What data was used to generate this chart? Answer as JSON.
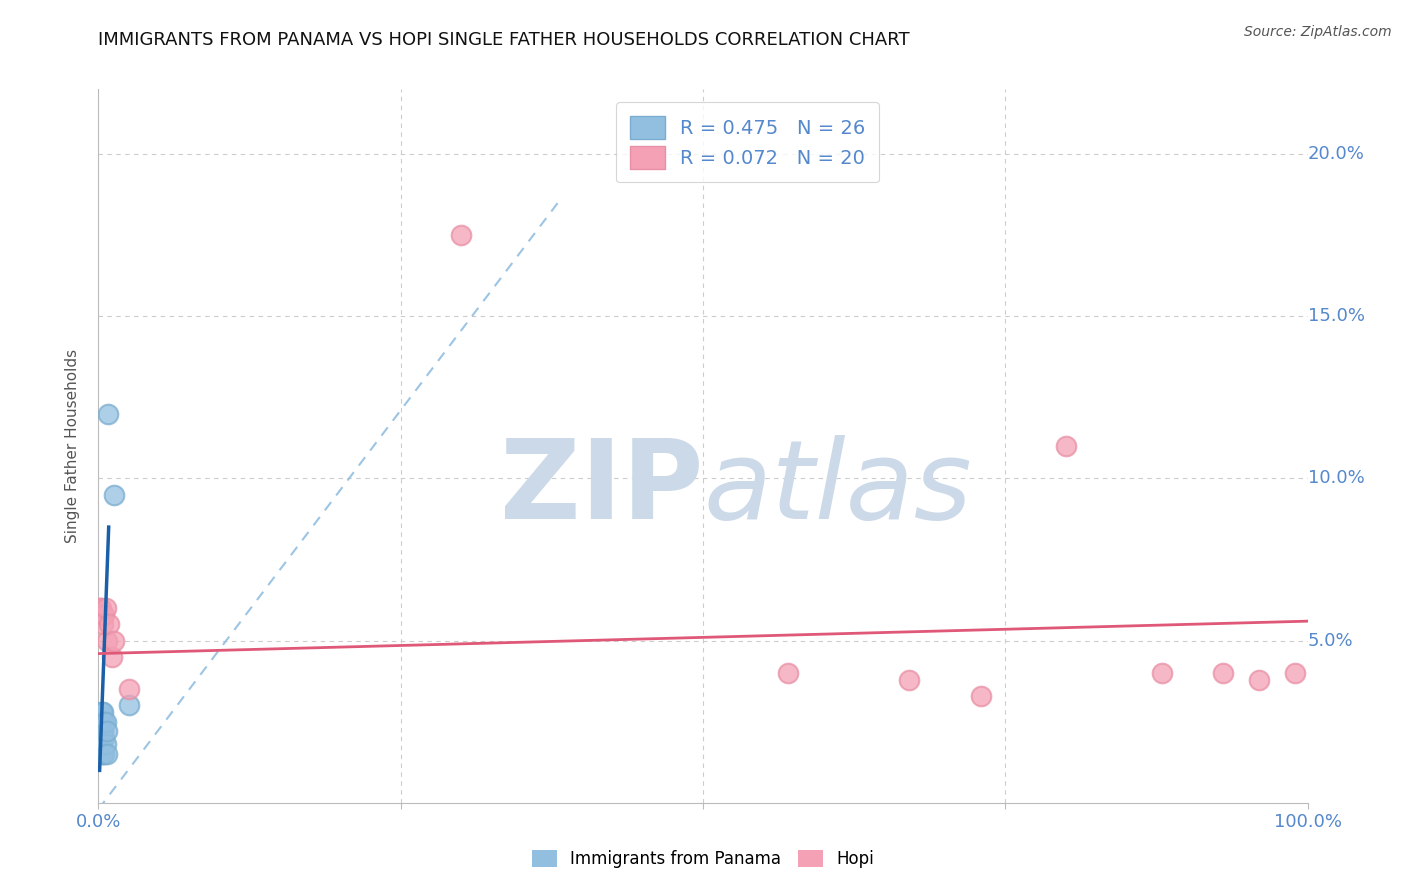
{
  "title": "IMMIGRANTS FROM PANAMA VS HOPI SINGLE FATHER HOUSEHOLDS CORRELATION CHART",
  "source_text": "Source: ZipAtlas.com",
  "ylabel": "Single Father Households",
  "xlim": [
    0.0,
    1.0
  ],
  "ylim": [
    0.0,
    0.22
  ],
  "xticks": [
    0.0,
    0.25,
    0.5,
    0.75,
    1.0
  ],
  "xtick_labels": [
    "0.0%",
    "",
    "",
    "",
    "100.0%"
  ],
  "yticks": [
    0.05,
    0.1,
    0.15,
    0.2
  ],
  "ytick_labels": [
    "5.0%",
    "10.0%",
    "15.0%",
    "20.0%"
  ],
  "legend_r_blue": "R = 0.475",
  "legend_n_blue": "N = 26",
  "legend_r_pink": "R = 0.072",
  "legend_n_pink": "N = 20",
  "blue_points_x": [
    0.001,
    0.001,
    0.001,
    0.001,
    0.002,
    0.002,
    0.002,
    0.002,
    0.002,
    0.003,
    0.003,
    0.003,
    0.003,
    0.004,
    0.004,
    0.004,
    0.005,
    0.005,
    0.005,
    0.006,
    0.006,
    0.007,
    0.007,
    0.008,
    0.013,
    0.025
  ],
  "blue_points_y": [
    0.025,
    0.022,
    0.02,
    0.018,
    0.028,
    0.025,
    0.022,
    0.018,
    0.015,
    0.028,
    0.025,
    0.022,
    0.018,
    0.028,
    0.022,
    0.015,
    0.025,
    0.02,
    0.015,
    0.025,
    0.018,
    0.022,
    0.015,
    0.12,
    0.095,
    0.03
  ],
  "pink_points_x": [
    0.001,
    0.002,
    0.003,
    0.004,
    0.005,
    0.006,
    0.007,
    0.009,
    0.011,
    0.013,
    0.025,
    0.3,
    0.57,
    0.67,
    0.73,
    0.8,
    0.88,
    0.93,
    0.96,
    0.99
  ],
  "pink_points_y": [
    0.06,
    0.06,
    0.058,
    0.055,
    0.058,
    0.06,
    0.05,
    0.055,
    0.045,
    0.05,
    0.035,
    0.175,
    0.04,
    0.038,
    0.033,
    0.11,
    0.04,
    0.04,
    0.038,
    0.04
  ],
  "blue_scatter_color": "#92bfe0",
  "blue_scatter_edge": "#7aadd0",
  "pink_scatter_color": "#f4a0b5",
  "pink_scatter_edge": "#e890a5",
  "blue_line_color": "#1a5fa8",
  "blue_dash_color": "#92bfe0",
  "pink_line_color": "#e05878",
  "watermark_color": "#ccd9e8",
  "background_color": "#ffffff",
  "grid_color": "#cccccc",
  "tick_label_color": "#5588cc",
  "title_color": "#111111",
  "ylabel_color": "#555555",
  "source_color": "#555555"
}
